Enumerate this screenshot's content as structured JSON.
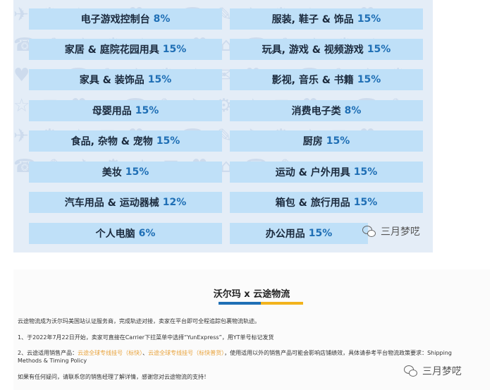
{
  "categories_left": [
    {
      "name": "电子游戏控制台",
      "rate": "8%"
    },
    {
      "name": "家居 & 庭院花园用具",
      "rate": "15%"
    },
    {
      "name": "家具 & 装饰品",
      "rate": "15%"
    },
    {
      "name": "母婴用品",
      "rate": "15%"
    },
    {
      "name": "食品, 杂物 & 宠物",
      "rate": "15%"
    },
    {
      "name": "美妆",
      "rate": "15%"
    },
    {
      "name": "汽车用品 & 运动器械",
      "rate": "12%"
    },
    {
      "name": "个人电脑",
      "rate": "6%"
    }
  ],
  "categories_right": [
    {
      "name": "服装, 鞋子 & 饰品",
      "rate": "15%"
    },
    {
      "name": "玩具, 游戏 & 视频游戏",
      "rate": "15%"
    },
    {
      "name": "影视, 音乐 & 书籍",
      "rate": "15%"
    },
    {
      "name": "消费电子类",
      "rate": "8%"
    },
    {
      "name": "厨房",
      "rate": "15%"
    },
    {
      "name": "运动 & 户外用具",
      "rate": "15%"
    },
    {
      "name": "箱包 & 旅行用品",
      "rate": "15%"
    },
    {
      "name": "办公用品",
      "rate": "15%"
    }
  ],
  "watermark": {
    "text": "三月梦呓",
    "icon": "wechat-icon"
  },
  "doc": {
    "title": "沃尔玛 x 云途物流",
    "p1": "云途物流成为沃尔玛美国站认证服务商，完成轨迹对接，卖家在平台即可全程追踪包裹物流轨迹。",
    "p2": "1、于2022年7月22日开始，卖家可直接在Carrier下拉菜单中选择“YunExpress”，用YT单号标记发货",
    "p3_a": "2、云途适用销售产品：",
    "p3_hl1": "云途全球专线挂号（标快）",
    "p3_sep": "、",
    "p3_hl2": "云途全球专线挂号（标快普货）",
    "p3_b": "，使用适用以外的销售产品可能会影响店铺绩效，具体请参考平台物流政策要求：Shipping",
    "p3_c": "Methods & Timing Policy",
    "p4": "如果有任何疑问，请联系您的销售经理了解详情，感谢您对云途物流的支持！"
  },
  "colors": {
    "cell_bg": "#bfe0f8",
    "rate": "#1f6fb5",
    "panel_bg": "#e4edf7",
    "accent_blue": "#1f6fb5",
    "accent_yellow": "#f2b31c",
    "highlight": "#e8a23a"
  }
}
